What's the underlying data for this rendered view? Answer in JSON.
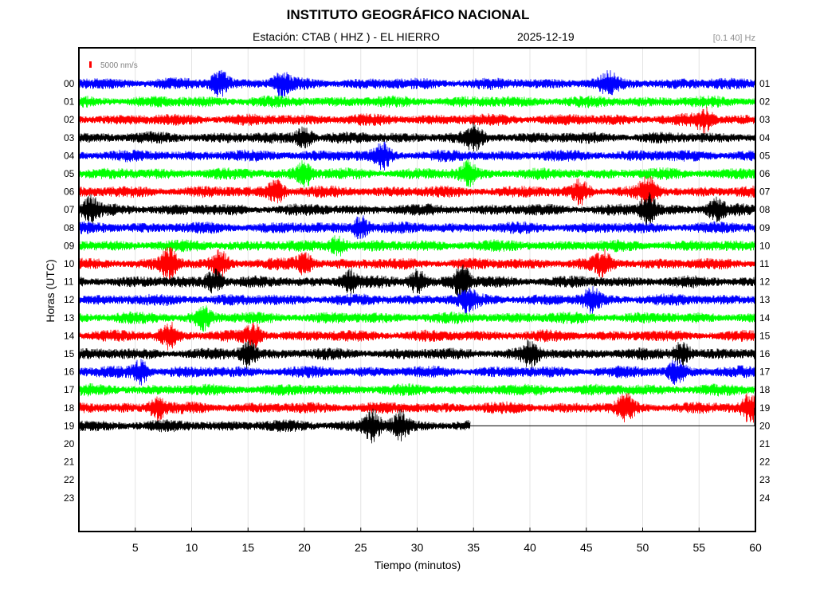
{
  "header": {
    "title": "INSTITUTO GEOGRÁFICO NACIONAL",
    "station_text": "Estación:  CTAB ( HHZ ) - EL HIERRO",
    "date": "2025-12-19",
    "filter_band": "[0.1 40] Hz"
  },
  "chart_data": {
    "type": "line",
    "subtype": "helicorder",
    "title": "INSTITUTO GEOGRÁFICO NACIONAL",
    "xlabel": "Tiempo (minutos)",
    "ylabel": "Horas (UTC)",
    "xlim": [
      0,
      60
    ],
    "x_ticks": [
      5,
      10,
      15,
      20,
      25,
      30,
      35,
      40,
      45,
      50,
      55,
      60
    ],
    "left_hour_labels": [
      "00",
      "01",
      "02",
      "03",
      "04",
      "05",
      "06",
      "07",
      "08",
      "09",
      "10",
      "11",
      "12",
      "13",
      "14",
      "15",
      "16",
      "17",
      "18",
      "19",
      "20",
      "21",
      "22",
      "23"
    ],
    "right_hour_labels": [
      "01",
      "02",
      "03",
      "04",
      "05",
      "06",
      "07",
      "08",
      "09",
      "10",
      "11",
      "12",
      "13",
      "14",
      "15",
      "16",
      "17",
      "18",
      "19",
      "20",
      "21",
      "22",
      "23",
      "24"
    ],
    "scale_label": "5000 nm/s",
    "scale_color": "#ff0000",
    "trace_colors": [
      "#0000ff",
      "#00ff00",
      "#ff0000",
      "#000000"
    ],
    "last_trace_hour": 19,
    "last_trace_end_minute": 34.7,
    "grid": "vertical",
    "events": [
      {
        "hour": 0,
        "minute": 12.5,
        "amp": 2.0
      },
      {
        "hour": 0,
        "minute": 18.0,
        "amp": 1.6
      },
      {
        "hour": 0,
        "minute": 47.0,
        "amp": 1.4
      },
      {
        "hour": 2,
        "minute": 55.5,
        "amp": 1.6
      },
      {
        "hour": 3,
        "minute": 20.0,
        "amp": 1.5
      },
      {
        "hour": 3,
        "minute": 35.0,
        "amp": 1.6
      },
      {
        "hour": 4,
        "minute": 27.0,
        "amp": 1.7
      },
      {
        "hour": 5,
        "minute": 20.0,
        "amp": 1.8
      },
      {
        "hour": 5,
        "minute": 34.5,
        "amp": 1.5
      },
      {
        "hour": 6,
        "minute": 17.5,
        "amp": 1.7
      },
      {
        "hour": 6,
        "minute": 44.5,
        "amp": 1.6
      },
      {
        "hour": 6,
        "minute": 50.5,
        "amp": 2.2
      },
      {
        "hour": 7,
        "minute": 1.0,
        "amp": 1.8
      },
      {
        "hour": 7,
        "minute": 50.5,
        "amp": 2.2
      },
      {
        "hour": 7,
        "minute": 56.5,
        "amp": 1.5
      },
      {
        "hour": 8,
        "minute": 25.0,
        "amp": 1.7
      },
      {
        "hour": 9,
        "minute": 23.0,
        "amp": 1.5
      },
      {
        "hour": 10,
        "minute": 8.0,
        "amp": 2.0
      },
      {
        "hour": 10,
        "minute": 12.5,
        "amp": 1.8
      },
      {
        "hour": 10,
        "minute": 20.0,
        "amp": 1.6
      },
      {
        "hour": 10,
        "minute": 46.5,
        "amp": 1.7
      },
      {
        "hour": 11,
        "minute": 12.0,
        "amp": 1.8
      },
      {
        "hour": 11,
        "minute": 24.0,
        "amp": 1.6
      },
      {
        "hour": 11,
        "minute": 34.0,
        "amp": 2.4
      },
      {
        "hour": 11,
        "minute": 30.0,
        "amp": 1.8
      },
      {
        "hour": 12,
        "minute": 34.5,
        "amp": 1.6
      },
      {
        "hour": 12,
        "minute": 45.5,
        "amp": 1.6
      },
      {
        "hour": 13,
        "minute": 11.0,
        "amp": 1.6
      },
      {
        "hour": 14,
        "minute": 8.0,
        "amp": 1.8
      },
      {
        "hour": 14,
        "minute": 15.5,
        "amp": 1.6
      },
      {
        "hour": 15,
        "minute": 15.0,
        "amp": 2.0
      },
      {
        "hour": 15,
        "minute": 40.0,
        "amp": 1.7
      },
      {
        "hour": 15,
        "minute": 53.5,
        "amp": 1.8
      },
      {
        "hour": 16,
        "minute": 5.5,
        "amp": 1.7
      },
      {
        "hour": 16,
        "minute": 53.0,
        "amp": 1.6
      },
      {
        "hour": 18,
        "minute": 7.0,
        "amp": 1.6
      },
      {
        "hour": 18,
        "minute": 48.5,
        "amp": 1.9
      },
      {
        "hour": 18,
        "minute": 59.5,
        "amp": 2.0
      },
      {
        "hour": 19,
        "minute": 26.0,
        "amp": 2.3
      },
      {
        "hour": 19,
        "minute": 28.5,
        "amp": 1.9
      }
    ]
  }
}
